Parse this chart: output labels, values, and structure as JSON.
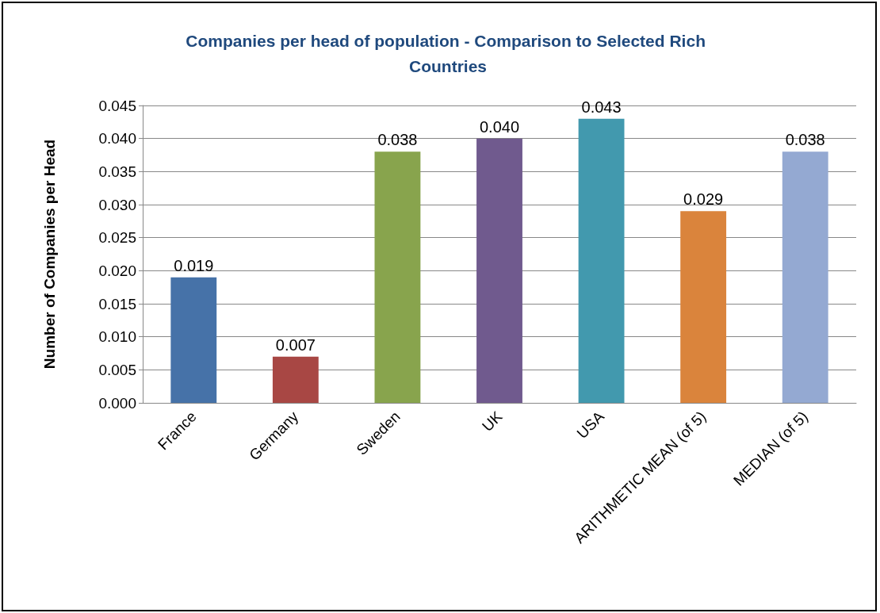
{
  "chart_data": {
    "type": "bar",
    "title": "Companies per head of population - Comparison to Selected Rich Countries",
    "ylabel": "Number of Companies per Head",
    "categories": [
      "France",
      "Germany",
      "Sweden",
      "UK",
      "USA",
      "ARITHMETIC MEAN (of 5)",
      "MEDIAN (of 5)"
    ],
    "values": [
      0.019,
      0.007,
      0.038,
      0.04,
      0.043,
      0.029,
      0.038
    ],
    "value_labels": [
      "0.019",
      "0.007",
      "0.038",
      "0.040",
      "0.043",
      "0.029",
      "0.038"
    ],
    "colors": [
      "#4672a8",
      "#a84744",
      "#88a44d",
      "#705a8e",
      "#4299ae",
      "#da843c",
      "#94a9d2"
    ],
    "ylim": [
      0,
      0.045
    ],
    "yticks": [
      {
        "value": 0,
        "label": "0.000"
      },
      {
        "value": 0.005,
        "label": "0.005"
      },
      {
        "value": 0.01,
        "label": "0.010"
      },
      {
        "value": 0.015,
        "label": "0.015"
      },
      {
        "value": 0.02,
        "label": "0.020"
      },
      {
        "value": 0.025,
        "label": "0.025"
      },
      {
        "value": 0.03,
        "label": "0.030"
      },
      {
        "value": 0.035,
        "label": "0.035"
      },
      {
        "value": 0.04,
        "label": "0.040"
      },
      {
        "value": 0.045,
        "label": "0.045"
      }
    ],
    "grid": "y"
  }
}
